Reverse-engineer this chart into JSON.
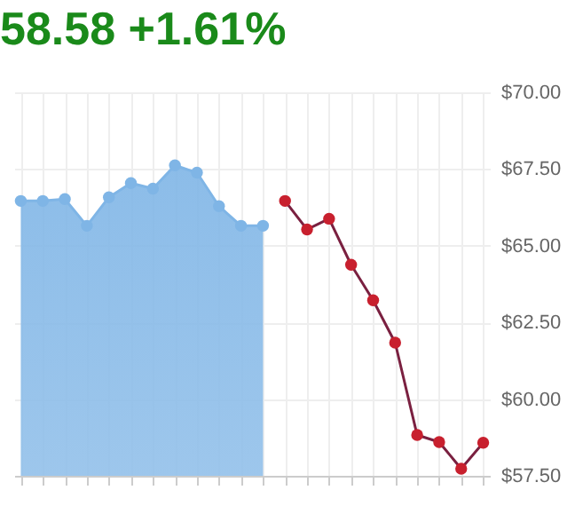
{
  "chart_data": {
    "type": "area",
    "title": "58.58 +1.61%",
    "categories": [
      null,
      null,
      null,
      null,
      null,
      null,
      null,
      null,
      null,
      null,
      null,
      null,
      null,
      null,
      null,
      null,
      null,
      null,
      null,
      null,
      null,
      null
    ],
    "series": [
      {
        "color": "#7fb5e6",
        "values": [
          66.46,
          66.46,
          66.52,
          65.65,
          66.58,
          67.04,
          66.86,
          67.62,
          67.38,
          66.29,
          65.65,
          65.65,
          null,
          null,
          null,
          null,
          null,
          null,
          null,
          null,
          null,
          null
        ]
      },
      {
        "type": "line",
        "color": "#c8202e",
        "values": [
          null,
          null,
          null,
          null,
          null,
          null,
          null,
          null,
          null,
          null,
          null,
          null,
          66.46,
          65.53,
          65.88,
          64.38,
          63.22,
          61.84,
          58.83,
          58.6,
          57.73,
          58.58
        ]
      }
    ],
    "ylim": [
      57.5,
      70
    ],
    "yticks": [
      {
        "value": 57.5,
        "label": "$57.50"
      },
      {
        "value": 60,
        "label": "$60.00"
      },
      {
        "value": 62.5,
        "label": "$62.50"
      },
      {
        "value": 65,
        "label": "$65.00"
      },
      {
        "value": 67.5,
        "label": "$67.50"
      },
      {
        "value": 70,
        "label": "$70.00"
      }
    ],
    "grid": true,
    "marker": "circle"
  }
}
